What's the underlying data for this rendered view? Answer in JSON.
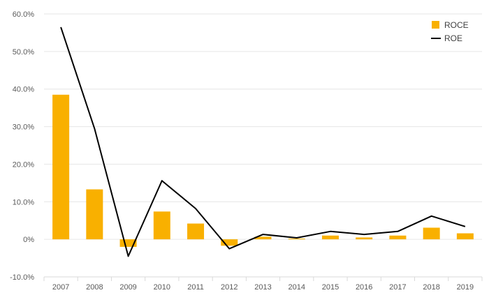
{
  "chart_data": {
    "type": "bar",
    "categories": [
      "2007",
      "2008",
      "2009",
      "2010",
      "2011",
      "2012",
      "2013",
      "2014",
      "2015",
      "2016",
      "2017",
      "2018",
      "2019"
    ],
    "series": [
      {
        "name": "ROCE",
        "type": "bar",
        "color": "#f9b000",
        "values": [
          38.5,
          13.3,
          -2.0,
          7.4,
          4.2,
          -1.7,
          0.7,
          0.2,
          1.0,
          0.5,
          1.0,
          3.1,
          1.6
        ]
      },
      {
        "name": "ROE",
        "type": "line",
        "color": "#000000",
        "values": [
          56.5,
          29.5,
          -4.5,
          15.6,
          8.2,
          -2.5,
          1.3,
          0.4,
          2.1,
          1.3,
          2.1,
          6.2,
          3.4
        ]
      }
    ],
    "yticks": [
      "-10.0%",
      "0%",
      "10.0%",
      "20.0%",
      "30.0%",
      "40.0%",
      "50.0%",
      "60.0%"
    ],
    "ylim": [
      -10,
      60
    ],
    "grid": true,
    "legend_position": "top-right"
  }
}
